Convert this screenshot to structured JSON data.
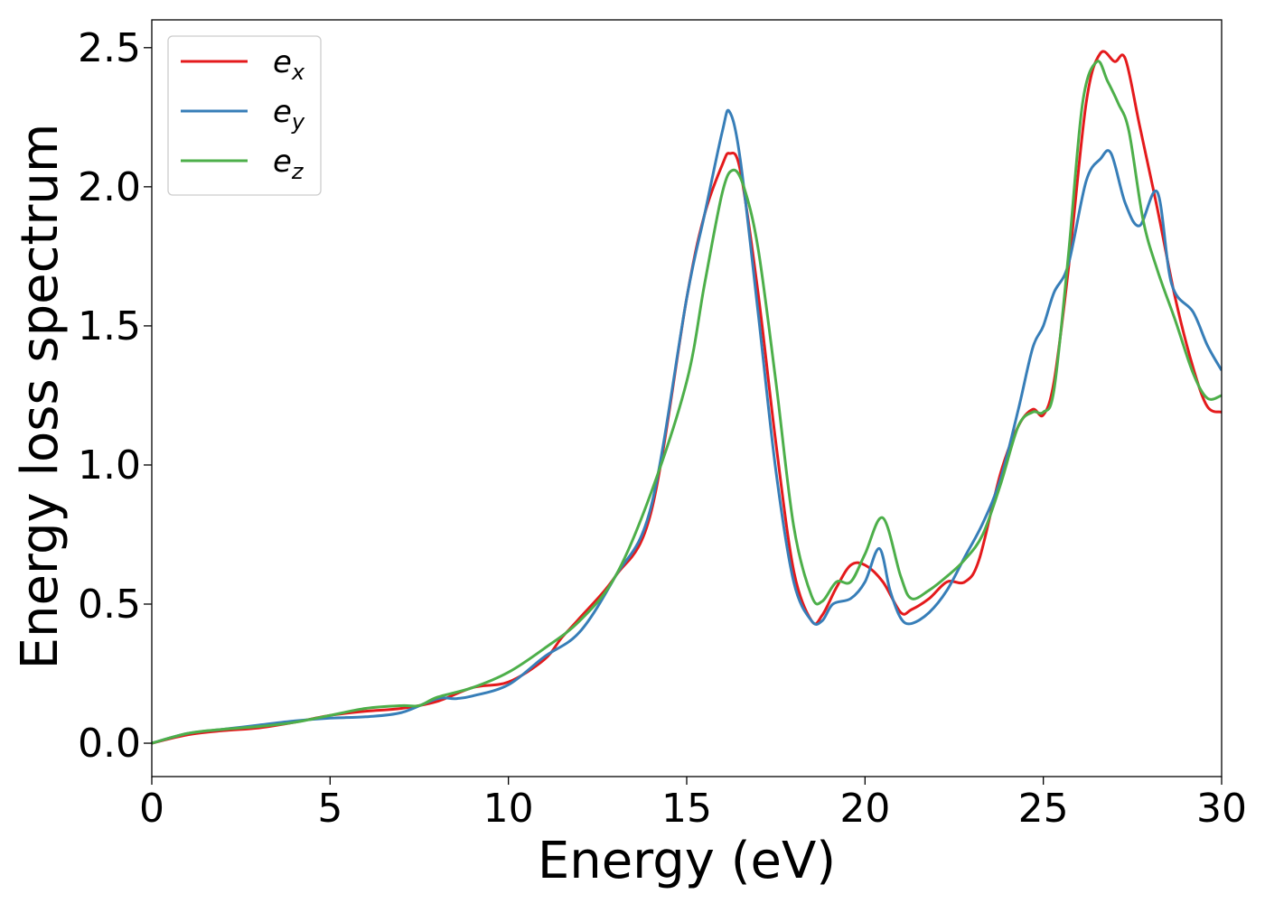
{
  "chart_data": {
    "type": "line",
    "title": "",
    "xlabel": "Energy (eV)",
    "ylabel": "Energy loss spectrum",
    "xlim": [
      0,
      30
    ],
    "ylim": [
      -0.12,
      2.6
    ],
    "xticks": [
      0,
      5,
      10,
      15,
      20,
      25,
      30
    ],
    "yticks": [
      0.0,
      0.5,
      1.0,
      1.5,
      2.0,
      2.5
    ],
    "xtick_labels": [
      "0",
      "5",
      "10",
      "15",
      "20",
      "25",
      "30"
    ],
    "ytick_labels": [
      "0.0",
      "0.5",
      "1.0",
      "1.5",
      "2.0",
      "2.5"
    ],
    "grid": false,
    "legend_position": "top-left",
    "series": [
      {
        "name": "e",
        "subscript": "x",
        "color": "#e41a1c",
        "x": [
          0,
          1,
          2,
          3,
          4,
          5,
          6,
          7,
          8,
          9,
          10,
          11,
          11.5,
          12,
          13,
          14,
          15,
          15.5,
          16,
          16.2,
          16.5,
          17,
          17.5,
          18,
          18.5,
          18.8,
          19.2,
          19.6,
          20,
          20.5,
          21,
          21.3,
          21.8,
          22.3,
          22.8,
          23.2,
          23.8,
          24.3,
          24.7,
          25,
          25.3,
          25.7,
          26.2,
          26.6,
          27,
          27.3,
          27.7,
          28.2,
          28.7,
          29.2,
          29.6,
          30
        ],
        "y": [
          0,
          0.03,
          0.045,
          0.055,
          0.075,
          0.1,
          0.115,
          0.125,
          0.15,
          0.2,
          0.22,
          0.3,
          0.38,
          0.45,
          0.6,
          0.83,
          1.6,
          1.9,
          2.08,
          2.12,
          2.06,
          1.62,
          1.08,
          0.62,
          0.44,
          0.46,
          0.56,
          0.64,
          0.64,
          0.58,
          0.47,
          0.48,
          0.52,
          0.58,
          0.58,
          0.66,
          0.97,
          1.14,
          1.2,
          1.18,
          1.3,
          1.7,
          2.3,
          2.48,
          2.45,
          2.46,
          2.22,
          1.92,
          1.6,
          1.35,
          1.21,
          1.19
        ]
      },
      {
        "name": "e",
        "subscript": "y",
        "color": "#377eb8",
        "x": [
          0,
          1,
          2,
          3,
          4,
          5,
          6,
          7,
          8,
          8.5,
          9,
          10,
          11,
          12,
          13,
          14,
          15,
          15.5,
          16,
          16.2,
          16.5,
          17,
          17.5,
          18,
          18.5,
          18.8,
          19.1,
          19.6,
          20,
          20.4,
          20.7,
          21,
          21.3,
          21.8,
          22.3,
          22.8,
          23.3,
          23.8,
          24.3,
          24.7,
          25,
          25.3,
          25.7,
          26.2,
          26.6,
          26.9,
          27.3,
          27.7,
          28.2,
          28.6,
          29.2,
          29.6,
          30
        ],
        "y": [
          0,
          0.035,
          0.05,
          0.065,
          0.08,
          0.09,
          0.095,
          0.11,
          0.16,
          0.16,
          0.17,
          0.21,
          0.31,
          0.4,
          0.6,
          0.85,
          1.6,
          1.9,
          2.2,
          2.27,
          2.1,
          1.55,
          0.98,
          0.58,
          0.44,
          0.44,
          0.5,
          0.52,
          0.58,
          0.7,
          0.55,
          0.45,
          0.43,
          0.47,
          0.55,
          0.67,
          0.79,
          0.95,
          1.2,
          1.42,
          1.5,
          1.62,
          1.72,
          2.02,
          2.1,
          2.12,
          1.94,
          1.86,
          1.98,
          1.65,
          1.55,
          1.43,
          1.34
        ]
      },
      {
        "name": "e",
        "subscript": "z",
        "color": "#4daf4a",
        "x": [
          0,
          1,
          2,
          3,
          4,
          5,
          6,
          7,
          7.5,
          8,
          9,
          10,
          11,
          12,
          13,
          14,
          15,
          15.5,
          16,
          16.3,
          16.6,
          17,
          17.5,
          18,
          18.5,
          18.8,
          19.2,
          19.6,
          20,
          20.5,
          21,
          21.3,
          21.8,
          22.3,
          22.8,
          23.3,
          23.8,
          24.3,
          24.7,
          25,
          25.3,
          25.7,
          26.1,
          26.5,
          26.8,
          27.1,
          27.4,
          27.8,
          28.2,
          28.7,
          29.2,
          29.6,
          30
        ],
        "y": [
          0,
          0.035,
          0.05,
          0.06,
          0.075,
          0.1,
          0.125,
          0.135,
          0.135,
          0.165,
          0.2,
          0.255,
          0.34,
          0.44,
          0.6,
          0.9,
          1.3,
          1.65,
          1.98,
          2.06,
          2.0,
          1.78,
          1.3,
          0.78,
          0.53,
          0.51,
          0.58,
          0.58,
          0.68,
          0.81,
          0.6,
          0.52,
          0.55,
          0.6,
          0.66,
          0.75,
          0.93,
          1.14,
          1.19,
          1.19,
          1.27,
          1.75,
          2.3,
          2.45,
          2.38,
          2.3,
          2.2,
          1.88,
          1.7,
          1.52,
          1.33,
          1.24,
          1.25
        ]
      }
    ]
  }
}
